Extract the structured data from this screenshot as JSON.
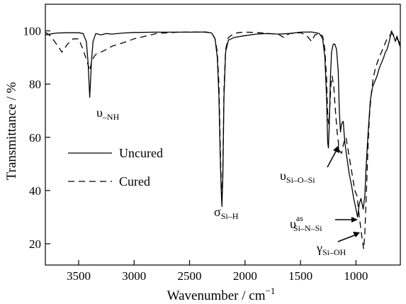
{
  "chart_data": {
    "type": "line",
    "title": "",
    "xlabel": "Wavenumber / cm",
    "xlabel_sup": "−1",
    "ylabel": "Transmittance / %",
    "xlim": [
      3800,
      600
    ],
    "ylim": [
      12,
      110
    ],
    "x_reversed": true,
    "xticks": [
      3500,
      3000,
      2500,
      2000,
      1500,
      1000
    ],
    "yticks": [
      20,
      40,
      60,
      80,
      100
    ],
    "grid": false,
    "legend_position": "middle-left",
    "series": [
      {
        "name": "Uncured",
        "style": "solid",
        "points": [
          [
            3800,
            98.5
          ],
          [
            3700,
            99.2
          ],
          [
            3600,
            99.3
          ],
          [
            3500,
            99.3
          ],
          [
            3460,
            99.0
          ],
          [
            3430,
            96
          ],
          [
            3415,
            88
          ],
          [
            3405,
            80
          ],
          [
            3400,
            75
          ],
          [
            3395,
            79
          ],
          [
            3385,
            88
          ],
          [
            3370,
            96
          ],
          [
            3345,
            99
          ],
          [
            3300,
            98.5
          ],
          [
            3250,
            99
          ],
          [
            3200,
            98.8
          ],
          [
            3100,
            99.2
          ],
          [
            3000,
            99.4
          ],
          [
            2800,
            99.5
          ],
          [
            2500,
            99.5
          ],
          [
            2350,
            99.6
          ],
          [
            2300,
            99.2
          ],
          [
            2270,
            97
          ],
          [
            2250,
            90
          ],
          [
            2235,
            75
          ],
          [
            2225,
            55
          ],
          [
            2215,
            40
          ],
          [
            2208,
            34
          ],
          [
            2200,
            45
          ],
          [
            2190,
            75
          ],
          [
            2175,
            92
          ],
          [
            2150,
            96.5
          ],
          [
            2100,
            97.5
          ],
          [
            2000,
            98.2
          ],
          [
            1900,
            98.8
          ],
          [
            1800,
            99
          ],
          [
            1700,
            98.8
          ],
          [
            1600,
            99
          ],
          [
            1500,
            99.5
          ],
          [
            1400,
            99.6
          ],
          [
            1330,
            99
          ],
          [
            1300,
            97
          ],
          [
            1280,
            90
          ],
          [
            1265,
            75
          ],
          [
            1255,
            58
          ],
          [
            1248,
            56
          ],
          [
            1240,
            65
          ],
          [
            1230,
            83
          ],
          [
            1220,
            92
          ],
          [
            1205,
            95
          ],
          [
            1190,
            95
          ],
          [
            1175,
            93
          ],
          [
            1160,
            85
          ],
          [
            1150,
            70
          ],
          [
            1140,
            62
          ],
          [
            1130,
            65
          ],
          [
            1115,
            66
          ],
          [
            1100,
            58
          ],
          [
            1080,
            52
          ],
          [
            1060,
            46
          ],
          [
            1040,
            42
          ],
          [
            1020,
            37
          ],
          [
            1000,
            33
          ],
          [
            985,
            30
          ],
          [
            970,
            35
          ],
          [
            955,
            37
          ],
          [
            945,
            35
          ],
          [
            935,
            33
          ],
          [
            920,
            38
          ],
          [
            910,
            48
          ],
          [
            890,
            62
          ],
          [
            870,
            74
          ],
          [
            850,
            79
          ],
          [
            830,
            81
          ],
          [
            810,
            83
          ],
          [
            790,
            86
          ],
          [
            770,
            88
          ],
          [
            750,
            90
          ],
          [
            735,
            92
          ],
          [
            720,
            93
          ],
          [
            700,
            96
          ],
          [
            680,
            100
          ],
          [
            660,
            98
          ],
          [
            645,
            96
          ],
          [
            630,
            98
          ],
          [
            610,
            95
          ],
          [
            600,
            94
          ]
        ]
      },
      {
        "name": "Cured",
        "style": "dashed",
        "points": [
          [
            3800,
            99.5
          ],
          [
            3750,
            98
          ],
          [
            3700,
            95
          ],
          [
            3650,
            92
          ],
          [
            3600,
            95
          ],
          [
            3550,
            97
          ],
          [
            3500,
            97
          ],
          [
            3460,
            93
          ],
          [
            3420,
            88
          ],
          [
            3400,
            85
          ],
          [
            3380,
            89
          ],
          [
            3350,
            91
          ],
          [
            3300,
            92
          ],
          [
            3250,
            93
          ],
          [
            3200,
            94.2
          ],
          [
            3100,
            95.5
          ],
          [
            3000,
            97
          ],
          [
            2900,
            98
          ],
          [
            2800,
            99
          ],
          [
            2600,
            99.5
          ],
          [
            2400,
            99.6
          ],
          [
            2300,
            99.3
          ],
          [
            2270,
            97
          ],
          [
            2250,
            92
          ],
          [
            2235,
            80
          ],
          [
            2225,
            60
          ],
          [
            2215,
            42
          ],
          [
            2208,
            38
          ],
          [
            2200,
            48
          ],
          [
            2190,
            78
          ],
          [
            2175,
            93
          ],
          [
            2150,
            97.5
          ],
          [
            2100,
            99
          ],
          [
            2050,
            99.4
          ],
          [
            2000,
            99.5
          ],
          [
            1900,
            99.4
          ],
          [
            1800,
            99
          ],
          [
            1700,
            98.8
          ],
          [
            1650,
            97.5
          ],
          [
            1600,
            99
          ],
          [
            1500,
            99.3
          ],
          [
            1450,
            98.5
          ],
          [
            1400,
            96
          ],
          [
            1370,
            98.5
          ],
          [
            1330,
            99
          ],
          [
            1300,
            98
          ],
          [
            1280,
            93
          ],
          [
            1265,
            82
          ],
          [
            1255,
            68
          ],
          [
            1245,
            65
          ],
          [
            1235,
            72
          ],
          [
            1225,
            80
          ],
          [
            1215,
            83
          ],
          [
            1200,
            79
          ],
          [
            1185,
            70
          ],
          [
            1170,
            62
          ],
          [
            1150,
            55
          ],
          [
            1130,
            54
          ],
          [
            1110,
            58
          ],
          [
            1090,
            60
          ],
          [
            1070,
            55
          ],
          [
            1050,
            50
          ],
          [
            1030,
            45
          ],
          [
            1010,
            40
          ],
          [
            990,
            38
          ],
          [
            975,
            32
          ],
          [
            960,
            27
          ],
          [
            945,
            22
          ],
          [
            930,
            18
          ],
          [
            920,
            24
          ],
          [
            905,
            40
          ],
          [
            890,
            58
          ],
          [
            875,
            70
          ],
          [
            860,
            77
          ],
          [
            845,
            82
          ],
          [
            825,
            86
          ],
          [
            800,
            89
          ],
          [
            780,
            91
          ],
          [
            760,
            93
          ],
          [
            740,
            95
          ],
          [
            720,
            97
          ],
          [
            700,
            98
          ],
          [
            680,
            99
          ],
          [
            660,
            98.5
          ],
          [
            640,
            97.5
          ],
          [
            620,
            96.5
          ],
          [
            600,
            95
          ]
        ]
      }
    ],
    "annotations": [
      {
        "id": "nu-nh",
        "main": "υ",
        "sub": "–NH",
        "sup": ""
      },
      {
        "id": "sigma-sih",
        "main": "σ",
        "sub": "Si–H",
        "sup": ""
      },
      {
        "id": "nu-sios",
        "main": "υ",
        "sub": "Si–O–Si",
        "sup": ""
      },
      {
        "id": "nu-sins",
        "main": "υ",
        "sub": "Si–N–Si",
        "sup": "as"
      },
      {
        "id": "gamma-sioh",
        "main": "γ",
        "sub": "Si–OH",
        "sup": ""
      }
    ]
  }
}
